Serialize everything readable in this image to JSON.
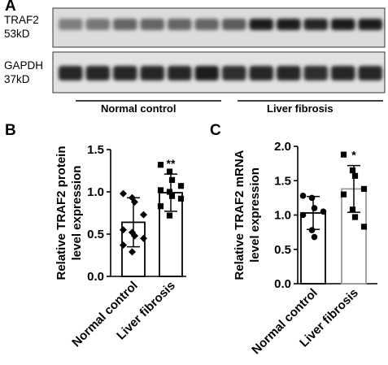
{
  "panel_a": {
    "letter": "A",
    "blots": [
      {
        "protein": "TRAF2",
        "weight": "53kD"
      },
      {
        "protein": "GAPDH",
        "weight": "37kD"
      }
    ],
    "groups": [
      "Normal control",
      "Liver fibrosis"
    ],
    "traf2_band_intensity": [
      0.4,
      0.45,
      0.55,
      0.55,
      0.55,
      0.55,
      0.6,
      0.95,
      0.95,
      0.9,
      0.95,
      0.95
    ],
    "gapdh_band_intensity": [
      0.9,
      0.9,
      0.9,
      0.9,
      0.9,
      0.95,
      0.85,
      0.9,
      0.9,
      0.85,
      0.9,
      0.9
    ]
  },
  "chart_data": [
    {
      "panel": "B",
      "type": "bar",
      "ylabel": "Relative TRAF2 protein level expression",
      "ylim": [
        0,
        1.5
      ],
      "yticks": [
        "0.0",
        "0.5",
        "1.0",
        "1.5"
      ],
      "categories": [
        "Normal control",
        "Liver fibrosis"
      ],
      "values": [
        0.64,
        0.99
      ],
      "errors": [
        0.29,
        0.22
      ],
      "significance": [
        "",
        "**"
      ],
      "bar_edge_colors": [
        "#000000",
        "#000000"
      ],
      "points": [
        [
          0.98,
          0.93,
          0.88,
          0.73,
          0.55,
          0.52,
          0.48,
          0.45,
          0.37,
          0.29
        ],
        [
          1.32,
          1.24,
          1.14,
          1.07,
          1.02,
          1.0,
          0.95,
          0.92,
          0.83,
          0.72
        ]
      ]
    },
    {
      "panel": "C",
      "type": "bar",
      "ylabel": "Relative TRAF2 mRNA level expression",
      "ylim": [
        0,
        2.0
      ],
      "yticks": [
        "0.0",
        "0.5",
        "1.0",
        "1.5",
        "2.0"
      ],
      "categories": [
        "Normal control",
        "Liver fibrosis"
      ],
      "values": [
        1.03,
        1.38
      ],
      "errors": [
        0.24,
        0.34
      ],
      "significance": [
        "",
        "*"
      ],
      "bar_edge_colors": [
        "#000000",
        "#9a9a9a"
      ],
      "points": [
        [
          1.28,
          1.25,
          1.1,
          1.05,
          1.0,
          0.78,
          0.68
        ],
        [
          1.88,
          1.65,
          1.57,
          1.38,
          1.3,
          1.08,
          0.97,
          0.83
        ]
      ]
    }
  ]
}
